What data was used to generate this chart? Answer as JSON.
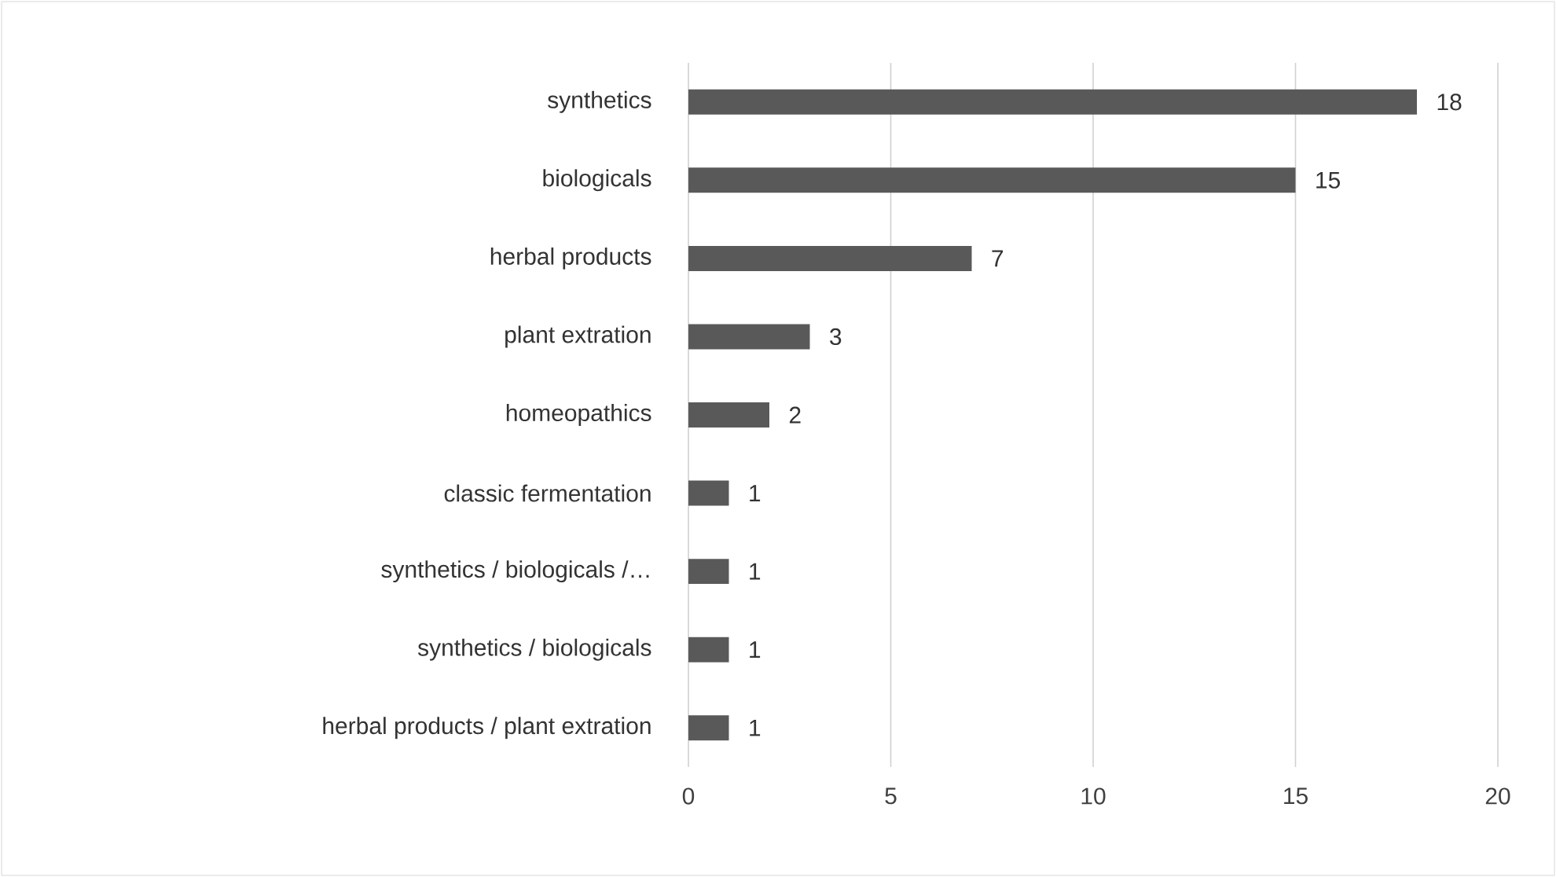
{
  "chart_data": {
    "type": "bar",
    "orientation": "horizontal",
    "categories": [
      "synthetics",
      "biologicals",
      "herbal products",
      "plant extration",
      "homeopathics",
      "classic fermentation",
      "synthetics / biologicals /…",
      "synthetics / biologicals",
      "herbal products / plant extration"
    ],
    "values": [
      18,
      15,
      7,
      3,
      2,
      1,
      1,
      1,
      1
    ],
    "color": "#595959",
    "xlim": [
      0,
      20
    ],
    "xticks": [
      0,
      5,
      10,
      15,
      20
    ],
    "grid": "x",
    "data_labels": true
  }
}
